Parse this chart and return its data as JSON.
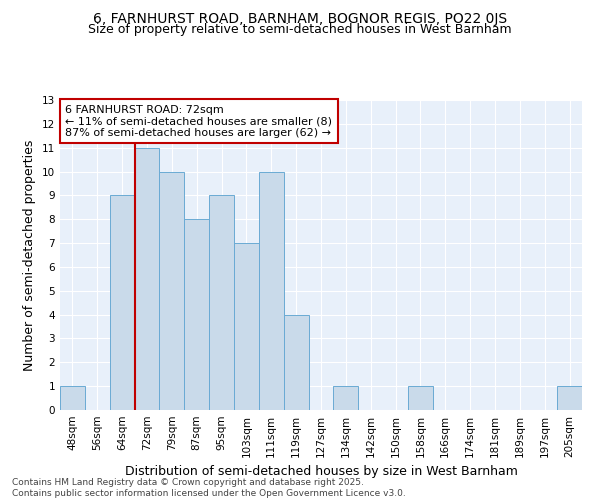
{
  "title": "6, FARNHURST ROAD, BARNHAM, BOGNOR REGIS, PO22 0JS",
  "subtitle": "Size of property relative to semi-detached houses in West Barnham",
  "xlabel": "Distribution of semi-detached houses by size in West Barnham",
  "ylabel": "Number of semi-detached properties",
  "categories": [
    "48sqm",
    "56sqm",
    "64sqm",
    "72sqm",
    "79sqm",
    "87sqm",
    "95sqm",
    "103sqm",
    "111sqm",
    "119sqm",
    "127sqm",
    "134sqm",
    "142sqm",
    "150sqm",
    "158sqm",
    "166sqm",
    "174sqm",
    "181sqm",
    "189sqm",
    "197sqm",
    "205sqm"
  ],
  "values": [
    1,
    0,
    9,
    11,
    10,
    8,
    9,
    7,
    10,
    4,
    0,
    1,
    0,
    0,
    1,
    0,
    0,
    0,
    0,
    0,
    1
  ],
  "bar_color": "#c9daea",
  "bar_edge_color": "#6aaad4",
  "ref_line_color": "#c00000",
  "annotation_title": "6 FARNHURST ROAD: 72sqm",
  "annotation_line1": "← 11% of semi-detached houses are smaller (8)",
  "annotation_line2": "87% of semi-detached houses are larger (62) →",
  "annotation_box_edgecolor": "#c00000",
  "ylim": [
    0,
    13
  ],
  "yticks": [
    0,
    1,
    2,
    3,
    4,
    5,
    6,
    7,
    8,
    9,
    10,
    11,
    12,
    13
  ],
  "bg_color": "#e8f0fa",
  "footer": "Contains HM Land Registry data © Crown copyright and database right 2025.\nContains public sector information licensed under the Open Government Licence v3.0.",
  "title_fontsize": 10,
  "subtitle_fontsize": 9,
  "axis_label_fontsize": 9,
  "tick_fontsize": 7.5,
  "footer_fontsize": 6.5
}
